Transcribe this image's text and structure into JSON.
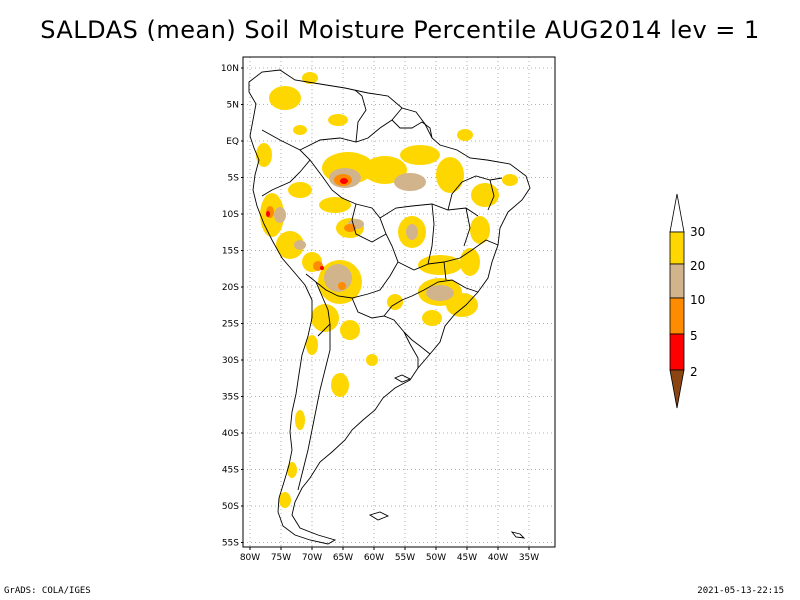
{
  "title": "SALDAS (mean) Soil Moisture Percentile AUG2014 lev = 1",
  "footer": {
    "left": "GrADS: COLA/IGES",
    "right": "2021-05-13-22:15"
  },
  "colors": {
    "c2": "#8B4513",
    "c5": "#ff0000",
    "c10": "#ff8c00",
    "c20": "#d2b48c",
    "c30": "#ffd700",
    "top": "#ffffff",
    "grid": "#999999"
  },
  "map": {
    "lat_labels": [
      "10N",
      "5N",
      "EQ",
      "5S",
      "10S",
      "15S",
      "20S",
      "25S",
      "30S",
      "35S",
      "40S",
      "45S",
      "50S",
      "55S"
    ],
    "lon_labels": [
      "80W",
      "75W",
      "70W",
      "65W",
      "60W",
      "55W",
      "50W",
      "45W",
      "40W",
      "35W"
    ]
  },
  "legend": {
    "labels": [
      "2",
      "5",
      "10",
      "20",
      "30"
    ]
  }
}
